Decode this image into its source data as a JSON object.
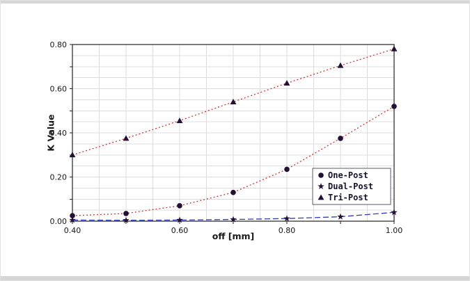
{
  "chart_data": {
    "type": "line",
    "title": "",
    "xlabel": "off [mm]",
    "ylabel": "K Value",
    "xlim": [
      0.4,
      1.0
    ],
    "ylim": [
      0.0,
      0.8
    ],
    "grid": {
      "visible": true,
      "x_minor_step": 0.05,
      "y_minor_step": 0.05,
      "color": "#dcdcdc"
    },
    "x_major_step": 0.1,
    "y_major_step": 0.1,
    "x_tick_labels": [
      [
        0.4,
        "0.40"
      ],
      [
        0.6,
        "0.60"
      ],
      [
        0.8,
        "0.80"
      ],
      [
        1.0,
        "1.00"
      ]
    ],
    "y_tick_labels": [
      [
        0.0,
        "0.00"
      ],
      [
        0.2,
        "0.20"
      ],
      [
        0.4,
        "0.40"
      ],
      [
        0.6,
        "0.60"
      ],
      [
        0.8,
        "0.80"
      ]
    ],
    "x": [
      0.4,
      0.5,
      0.6,
      0.7,
      0.8,
      0.9,
      1.0
    ],
    "series": [
      {
        "name": "One-Post",
        "marker": "circle",
        "line_style": "dotted",
        "line_color": "#d03434",
        "marker_color": "#241034",
        "values": [
          0.025,
          0.035,
          0.07,
          0.13,
          0.235,
          0.375,
          0.52
        ]
      },
      {
        "name": "Dual-Post",
        "marker": "star",
        "line_style": "dashed",
        "line_color": "#2b3db8",
        "marker_color": "#241034",
        "values": [
          0.005,
          0.004,
          0.005,
          0.008,
          0.012,
          0.02,
          0.04
        ]
      },
      {
        "name": "Tri-Post",
        "marker": "triangle",
        "line_style": "dotted",
        "line_color": "#d03434",
        "marker_color": "#241034",
        "values": [
          0.3,
          0.375,
          0.455,
          0.54,
          0.625,
          0.705,
          0.78
        ]
      }
    ],
    "legend": {
      "position": "lower-right"
    }
  }
}
